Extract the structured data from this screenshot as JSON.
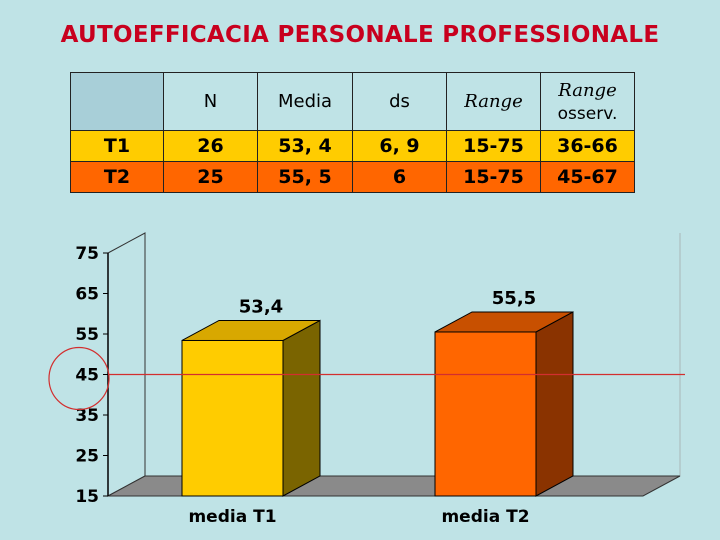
{
  "title": "AUTOEFFICACIA PERSONALE PROFESSIONALE",
  "table": {
    "header": [
      "",
      "N",
      "Media",
      "ds",
      "Range",
      "Range"
    ],
    "header_sub": [
      "",
      "",
      "",
      "",
      "",
      "osserv."
    ],
    "rows": [
      [
        "T1",
        "26",
        "53, 4",
        "6, 9",
        "15-75",
        "36-66"
      ],
      [
        "T2",
        "25",
        "55, 5",
        "6",
        "15-75",
        "45-67"
      ]
    ]
  },
  "colors": {
    "title": "#c8001e",
    "t1": "#ffcc00",
    "t2": "#ff6600",
    "reference_line": "#d22f2f",
    "background": "#bfe3e6"
  },
  "chart_data": {
    "type": "bar",
    "categories": [
      "media T1",
      "media T2"
    ],
    "values": [
      53.4,
      55.5
    ],
    "data_labels": [
      "53,4",
      "55,5"
    ],
    "yticks": [
      "75",
      "65",
      "55",
      "45",
      "35",
      "25",
      "15"
    ],
    "ylim": [
      15,
      75
    ],
    "reference_line": 45,
    "highlighted_tick": "45",
    "bar_style": "3d",
    "title": "",
    "xlabel": "",
    "ylabel": ""
  }
}
